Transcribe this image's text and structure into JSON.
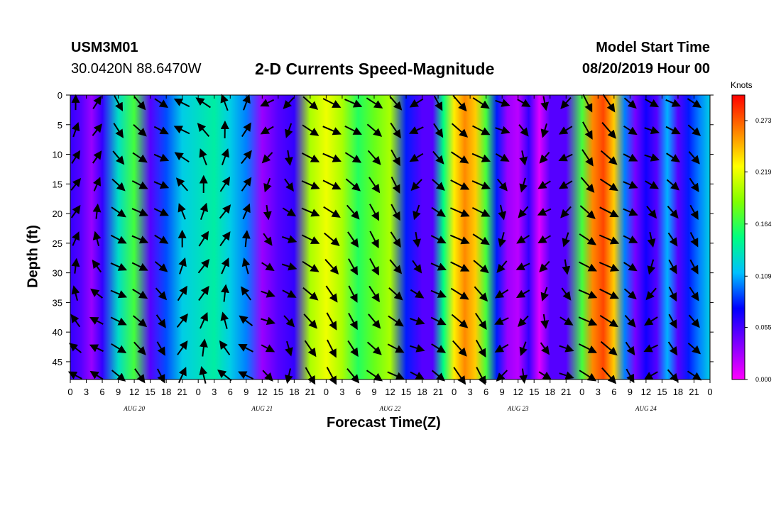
{
  "header": {
    "station_id": "USM3M01",
    "coordinates": "30.0420N 88.6470W",
    "title": "2-D Currents Speed-Magnitude",
    "start_label": "Model Start Time",
    "start_value": "08/20/2019 Hour 00"
  },
  "chart_data": {
    "type": "heatmap",
    "title": "2-D Currents Speed-Magnitude",
    "xlabel": "Forecast Time(Z)",
    "ylabel": "Depth (ft)",
    "x_ticks": [
      "0",
      "3",
      "6",
      "9",
      "12",
      "15",
      "18",
      "21",
      "0",
      "3",
      "6",
      "9",
      "12",
      "15",
      "18",
      "21",
      "0",
      "3",
      "6",
      "9",
      "12",
      "15",
      "18",
      "21",
      "0",
      "3",
      "6",
      "9",
      "12",
      "15",
      "18",
      "21",
      "0",
      "3",
      "6",
      "9",
      "12",
      "15",
      "18",
      "21",
      "0"
    ],
    "day_labels": [
      "AUG 20",
      "AUG 21",
      "AUG 22",
      "AUG 23",
      "AUG 24"
    ],
    "y_ticks": [
      "0",
      "5",
      "10",
      "15",
      "20",
      "25",
      "30",
      "35",
      "40",
      "45"
    ],
    "ylim": [
      0,
      48
    ],
    "xlim_hours": [
      0,
      120
    ],
    "colorbar": {
      "units": "Knots",
      "tick_labels": [
        "0.000",
        "0.055",
        "0.109",
        "0.164",
        "0.219",
        "0.273"
      ],
      "range": [
        0.0,
        0.3
      ],
      "colors": [
        "#ff00ff",
        "#8000ff",
        "#0000ff",
        "#00c0ff",
        "#00ff80",
        "#80ff00",
        "#ffff00",
        "#ff8000",
        "#ff0000"
      ]
    },
    "speed_profile": {
      "hours": [
        0,
        2,
        4,
        6,
        9,
        12,
        15,
        18,
        21,
        24,
        27,
        30,
        33,
        36,
        39,
        42,
        45,
        48,
        51,
        54,
        57,
        60,
        63,
        66,
        68,
        70,
        72,
        74,
        76,
        78,
        80,
        82,
        84,
        86,
        88,
        90,
        93,
        96,
        98,
        100,
        102,
        104,
        106,
        108,
        110,
        112,
        114,
        116,
        118,
        120
      ],
      "speed_knots": [
        0.06,
        0.05,
        0.03,
        0.06,
        0.13,
        0.17,
        0.05,
        0.09,
        0.12,
        0.13,
        0.14,
        0.12,
        0.1,
        0.03,
        0.05,
        0.06,
        0.2,
        0.22,
        0.2,
        0.16,
        0.18,
        0.2,
        0.08,
        0.05,
        0.05,
        0.15,
        0.23,
        0.26,
        0.24,
        0.17,
        0.08,
        0.03,
        0.02,
        0.06,
        0.01,
        0.05,
        0.05,
        0.17,
        0.26,
        0.28,
        0.24,
        0.1,
        0.04,
        0.07,
        0.05,
        0.11,
        0.05,
        0.08,
        0.1,
        0.12
      ]
    },
    "vector_direction": "predominantly toward southeast; northwest near AUG 20 and AUG 21 early hours"
  }
}
